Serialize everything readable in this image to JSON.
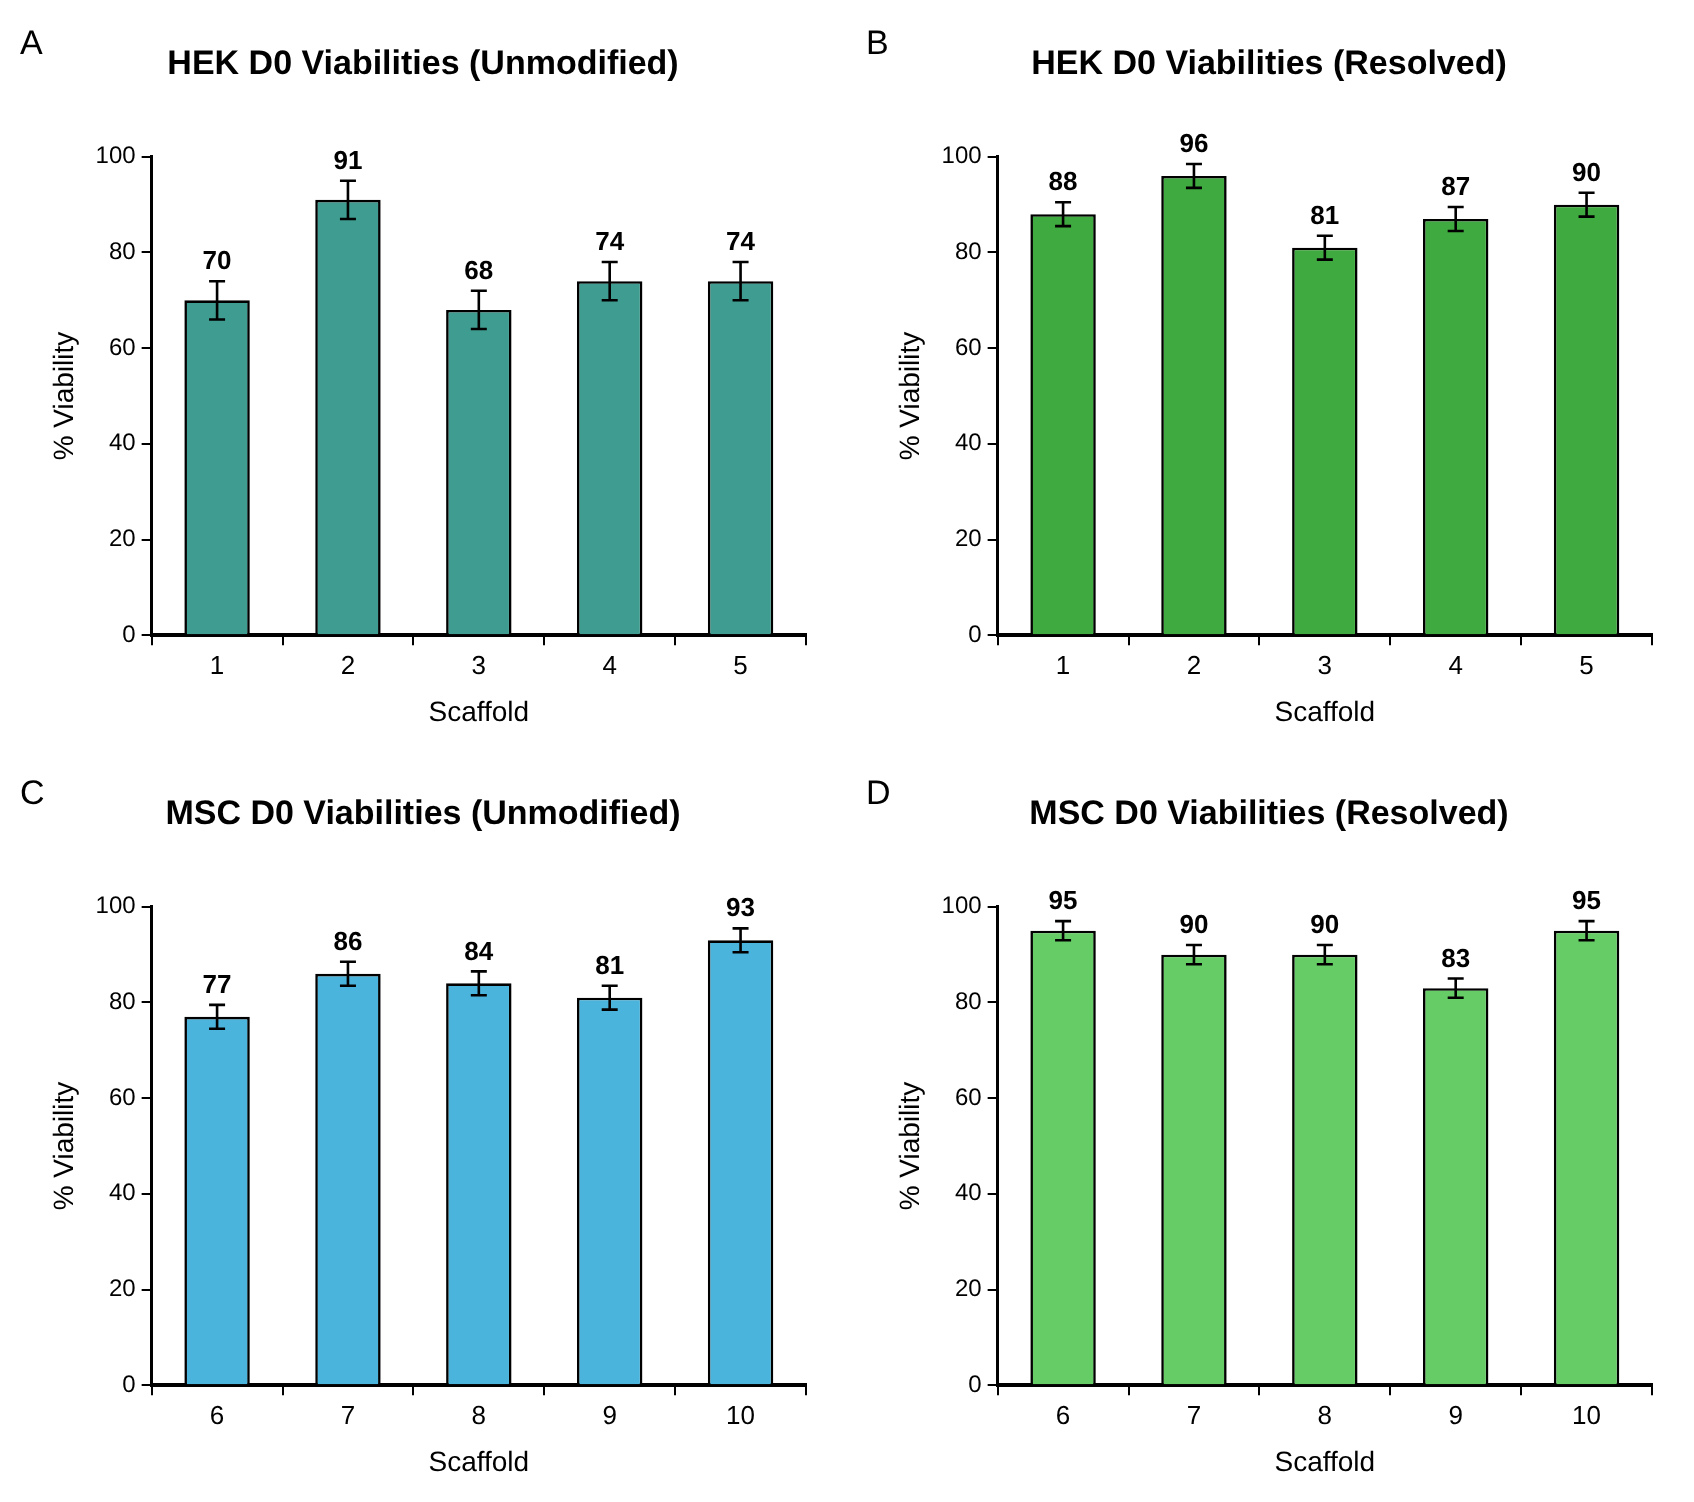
{
  "chart_data": [
    {
      "type": "bar",
      "title": "HEK D0 Viabilities (Unmodified)",
      "xlabel": "Scaffold",
      "ylabel": "% Viability",
      "annotations": [
        "A"
      ],
      "categories": [
        "1",
        "2",
        "3",
        "4",
        "5"
      ],
      "values": [
        70,
        91,
        68,
        74,
        74
      ],
      "errors": [
        4,
        4,
        4,
        4,
        4
      ],
      "color": "#3f9c90",
      "ylim": [
        0,
        100
      ],
      "yticks": [
        0,
        20,
        40,
        60,
        80,
        100
      ],
      "data_labels": true
    },
    {
      "type": "bar",
      "title": "HEK D0 Viabilities (Resolved)",
      "xlabel": "Scaffold",
      "ylabel": "% Viability",
      "annotations": [
        "B"
      ],
      "categories": [
        "1",
        "2",
        "3",
        "4",
        "5"
      ],
      "values": [
        88,
        96,
        81,
        87,
        90
      ],
      "errors": [
        2.5,
        2.5,
        2.5,
        2.5,
        2.5
      ],
      "color": "#3faa3f",
      "ylim": [
        0,
        100
      ],
      "yticks": [
        0,
        20,
        40,
        60,
        80,
        100
      ],
      "data_labels": true
    },
    {
      "type": "bar",
      "title": "MSC D0 Viabilities (Unmodified)",
      "xlabel": "Scaffold",
      "ylabel": "% Viability",
      "annotations": [
        "C"
      ],
      "categories": [
        "6",
        "7",
        "8",
        "9",
        "10"
      ],
      "values": [
        77,
        86,
        84,
        81,
        93
      ],
      "errors": [
        2.5,
        2.5,
        2.5,
        2.5,
        2.5
      ],
      "color": "#4ab4dc",
      "ylim": [
        0,
        100
      ],
      "yticks": [
        0,
        20,
        40,
        60,
        80,
        100
      ],
      "data_labels": true
    },
    {
      "type": "bar",
      "title": "MSC D0 Viabilities (Resolved)",
      "xlabel": "Scaffold",
      "ylabel": "% Viability",
      "annotations": [
        "D"
      ],
      "categories": [
        "6",
        "7",
        "8",
        "9",
        "10"
      ],
      "values": [
        95,
        90,
        90,
        83,
        95
      ],
      "errors": [
        2,
        2,
        2,
        2,
        2
      ],
      "color": "#66cc66",
      "ylim": [
        0,
        100
      ],
      "yticks": [
        0,
        20,
        40,
        60,
        80,
        100
      ],
      "data_labels": true
    }
  ]
}
